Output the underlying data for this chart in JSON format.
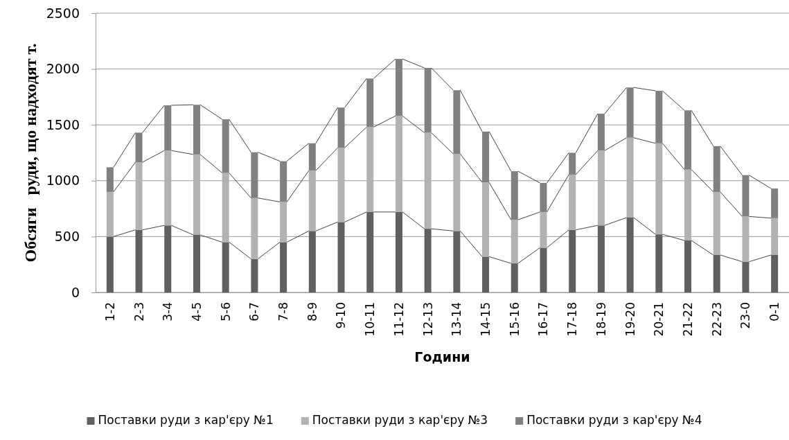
{
  "chart_data": {
    "type": "bar",
    "stacked": true,
    "xlabel": "Години",
    "ylabel": "Обсяги   руди, що надходят т.",
    "categories": [
      "1-2",
      "2-3",
      "3-4",
      "4-5",
      "5-6",
      "6-7",
      "7-8",
      "8-9",
      "9-10",
      "10-11",
      "11-12",
      "12-13",
      "13-14",
      "14-15",
      "15-16",
      "16-17",
      "17-18",
      "18-19",
      "19-20",
      "20-21",
      "21-22",
      "22-23",
      "23-0",
      "0-1"
    ],
    "series": [
      {
        "name": "Поставки руди з кар'єру №1",
        "color": "#606060",
        "values": [
          500,
          560,
          600,
          515,
          450,
          300,
          450,
          550,
          630,
          720,
          720,
          570,
          550,
          320,
          260,
          400,
          560,
          600,
          670,
          520,
          465,
          335,
          275,
          335
        ]
      },
      {
        "name": "Поставки руди з кар'єру №3",
        "color": "#b2b2b2",
        "values": [
          400,
          605,
          670,
          720,
          620,
          545,
          360,
          540,
          665,
          760,
          860,
          860,
          690,
          665,
          390,
          320,
          495,
          670,
          715,
          815,
          635,
          565,
          405,
          330
        ]
      },
      {
        "name": "Поставки руди з кар'єру №4",
        "color": "#808080",
        "values": [
          220,
          265,
          405,
          445,
          480,
          410,
          365,
          245,
          360,
          435,
          510,
          580,
          570,
          455,
          435,
          260,
          195,
          330,
          450,
          470,
          530,
          410,
          370,
          265
        ]
      }
    ],
    "ylim": [
      0,
      2500
    ],
    "yticks": [
      0,
      500,
      1000,
      1500,
      2000,
      2500
    ],
    "grid": "y",
    "legend": "bottom"
  }
}
